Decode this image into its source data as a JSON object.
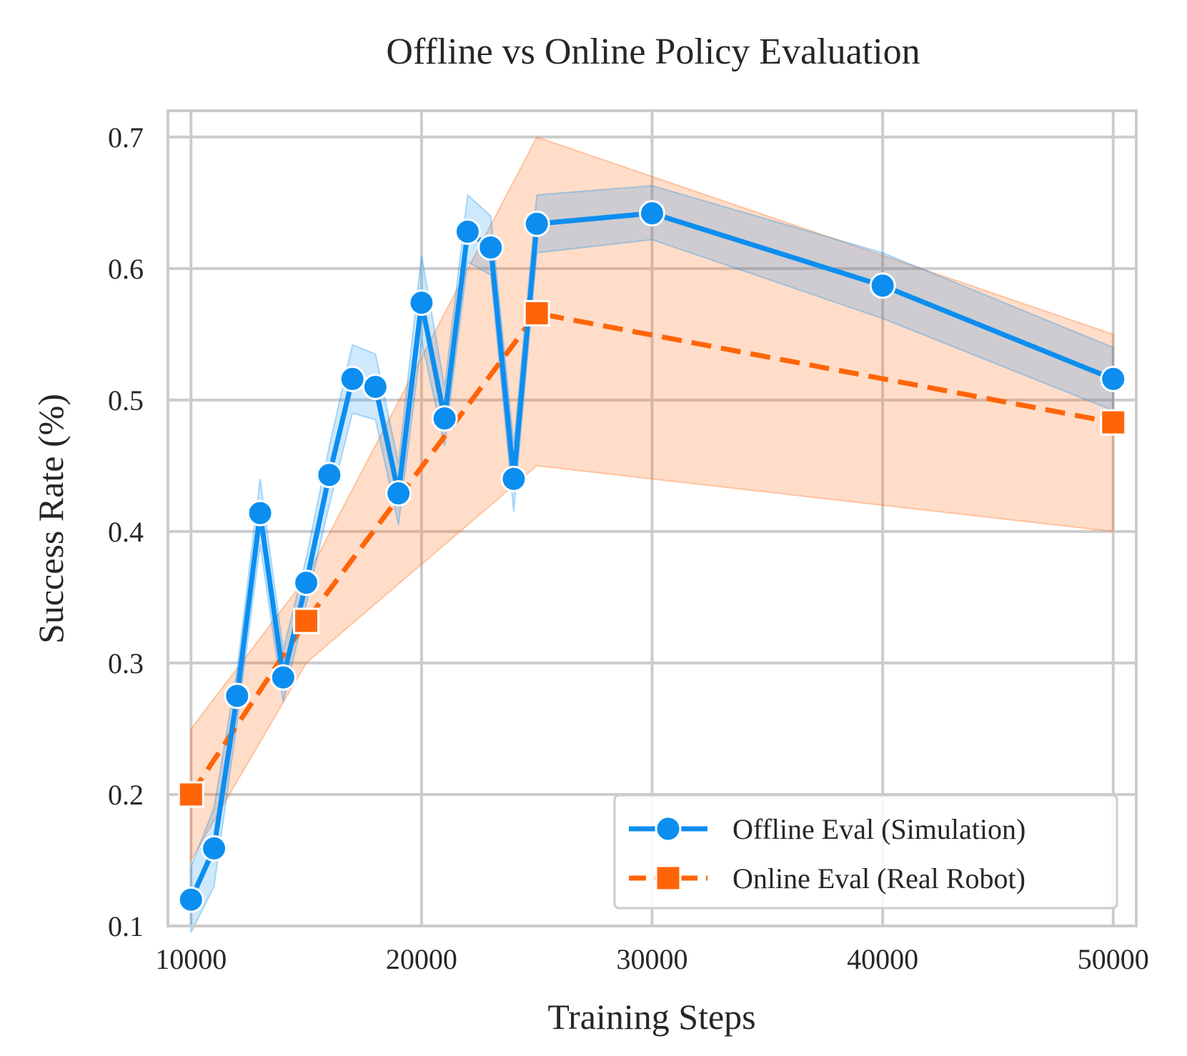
{
  "chart_data": {
    "type": "line",
    "title": "Offline vs Online Policy Evaluation",
    "xlabel": "Training Steps",
    "ylabel": "Success Rate (%)",
    "xlim": [
      9000,
      51000
    ],
    "ylim": [
      0.1,
      0.72
    ],
    "xticks": [
      10000,
      20000,
      30000,
      40000,
      50000
    ],
    "xtick_labels": [
      "10000",
      "20000",
      "30000",
      "40000",
      "50000"
    ],
    "yticks": [
      0.1,
      0.2,
      0.3,
      0.4,
      0.5,
      0.6,
      0.7
    ],
    "ytick_labels": [
      "0.1",
      "0.2",
      "0.3",
      "0.4",
      "0.5",
      "0.6",
      "0.7"
    ],
    "grid": true,
    "legend_position": "lower-right",
    "series": [
      {
        "name": "Offline Eval (Simulation)",
        "color": "#0c8ef0",
        "marker": "circle",
        "linestyle": "solid",
        "x": [
          10000,
          11000,
          12000,
          13000,
          14000,
          15000,
          16000,
          17000,
          18000,
          19000,
          20000,
          21000,
          22000,
          23000,
          24000,
          25000,
          30000,
          40000,
          50000
        ],
        "y": [
          0.12,
          0.159,
          0.275,
          0.414,
          0.289,
          0.361,
          0.443,
          0.516,
          0.51,
          0.429,
          0.574,
          0.486,
          0.628,
          0.616,
          0.44,
          0.634,
          0.642,
          0.587,
          0.516
        ],
        "lower": [
          0.095,
          0.13,
          0.255,
          0.39,
          0.27,
          0.345,
          0.42,
          0.49,
          0.485,
          0.405,
          0.545,
          0.465,
          0.605,
          0.595,
          0.415,
          0.612,
          0.622,
          0.562,
          0.492
        ],
        "upper": [
          0.145,
          0.19,
          0.295,
          0.44,
          0.31,
          0.38,
          0.465,
          0.542,
          0.535,
          0.452,
          0.61,
          0.51,
          0.656,
          0.64,
          0.466,
          0.656,
          0.663,
          0.612,
          0.54
        ]
      },
      {
        "name": "Online Eval (Real Robot)",
        "color": "#ff6508",
        "marker": "square",
        "linestyle": "dashed",
        "x": [
          10000,
          15000,
          25000,
          50000
        ],
        "y": [
          0.2,
          0.332,
          0.566,
          0.483
        ],
        "lower": [
          0.15,
          0.3,
          0.45,
          0.4
        ],
        "upper": [
          0.25,
          0.365,
          0.7,
          0.55
        ]
      }
    ]
  }
}
